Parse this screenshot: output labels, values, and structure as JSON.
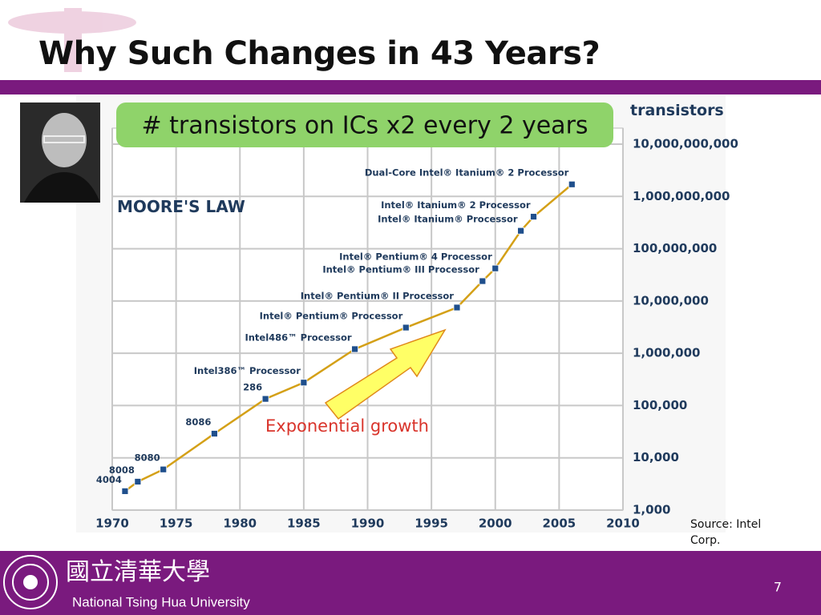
{
  "header": {
    "title": "Why Such Changes in 43 Years?"
  },
  "callout": "# transistors on ICs x2 every 2 years",
  "annotation": "Exponential growth",
  "source": "Source: Intel Corp.",
  "footer": {
    "university_zh": "國立清華大學",
    "university_en": "National Tsing Hua University",
    "page_number": "7"
  },
  "chart_data": {
    "type": "line",
    "title": "MOORE'S LAW",
    "y_label": "transistors",
    "log_y": true,
    "grid": true,
    "color": "#d4a017",
    "marker_color": "#1f4f8c",
    "x": [
      1971,
      1972,
      1974,
      1978,
      1982,
      1985,
      1989,
      1993,
      1997,
      1999,
      2000,
      2002,
      2003,
      2006
    ],
    "values": [
      2300,
      3500,
      6000,
      29000,
      134000,
      275000,
      1200000,
      3100000,
      7500000,
      24000000,
      42000000,
      220000000,
      410000000,
      1700000000
    ],
    "labels": [
      "4004",
      "8008",
      "8080",
      "8086",
      "286",
      "Intel386™ Processor",
      "Intel486™ Processor",
      "Intel® Pentium® Processor",
      "Intel® Pentium® II Processor",
      "Intel® Pentium® III Processor",
      "Intel® Pentium® 4 Processor",
      "Intel® Itanium® Processor",
      "Intel® Itanium® 2 Processor",
      "Dual-Core Intel® Itanium® 2 Processor"
    ],
    "xlim": [
      1970,
      2010
    ],
    "xticks": [
      1970,
      1975,
      1980,
      1985,
      1990,
      1995,
      2000,
      2005,
      2010
    ],
    "ylim": [
      1000,
      10000000000
    ],
    "yticks": [
      {
        "value": 1000,
        "label": "1,000"
      },
      {
        "value": 10000,
        "label": "10,000"
      },
      {
        "value": 100000,
        "label": "100,000"
      },
      {
        "value": 1000000,
        "label": "1,000,000"
      },
      {
        "value": 10000000,
        "label": "10,000,000"
      },
      {
        "value": 100000000,
        "label": "100,000,000"
      },
      {
        "value": 1000000000,
        "label": "1,000,000,000"
      },
      {
        "value": 10000000000,
        "label": "10,000,000,000"
      }
    ]
  }
}
